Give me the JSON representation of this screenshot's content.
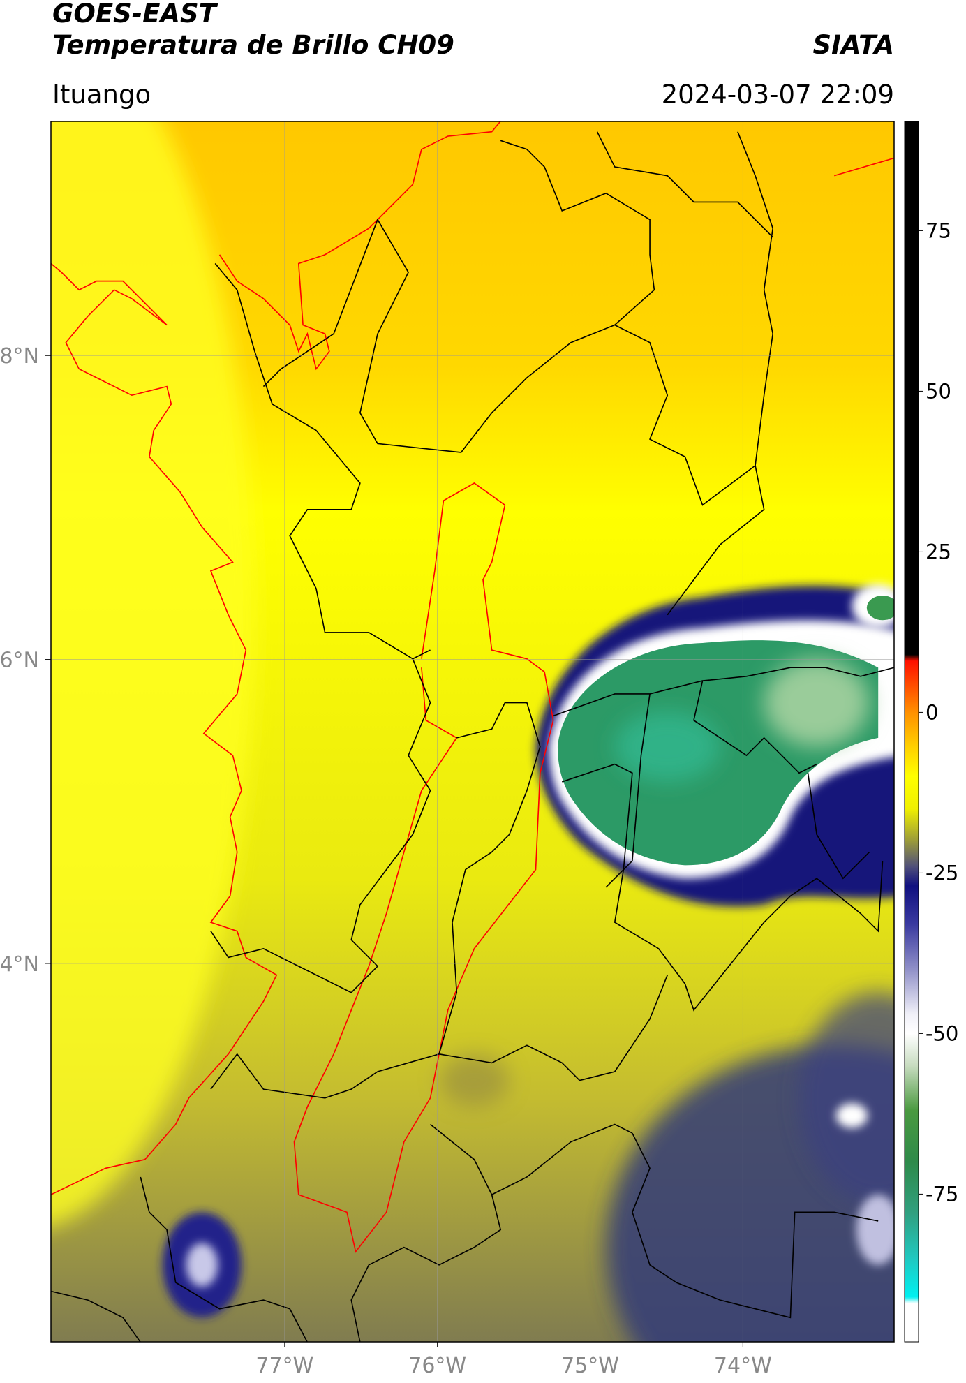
{
  "header": {
    "title": "GOES-EAST",
    "subtitle": "Temperatura de Brillo CH09",
    "source": "SIATA",
    "location": "Ituango",
    "datetime": "2024-03-07 22:09"
  },
  "map": {
    "xlim": [
      -78.53,
      -73.01
    ],
    "ylim": [
      1.51,
      9.54
    ],
    "xticks": [
      {
        "value": -77,
        "label": "77°W"
      },
      {
        "value": -76,
        "label": "76°W"
      },
      {
        "value": -75,
        "label": "75°W"
      },
      {
        "value": -74,
        "label": "74°W"
      }
    ],
    "yticks": [
      {
        "value": 4,
        "label": "4°N"
      },
      {
        "value": 6,
        "label": "6°N"
      },
      {
        "value": 8,
        "label": "8°N"
      }
    ],
    "grid": true
  },
  "colorbar": {
    "lim": [
      -98,
      92
    ],
    "ticks": [
      75,
      50,
      25,
      0,
      -25,
      -50,
      -75
    ],
    "stops": [
      {
        "value": 92,
        "color": "#000000"
      },
      {
        "value": 9,
        "color": "#000000"
      },
      {
        "value": 8,
        "color": "#ff1000"
      },
      {
        "value": 3,
        "color": "#ff6000"
      },
      {
        "value": 0,
        "color": "#ff9000"
      },
      {
        "value": -5,
        "color": "#ffcc00"
      },
      {
        "value": -10,
        "color": "#ffff00"
      },
      {
        "value": -15,
        "color": "#f0f000"
      },
      {
        "value": -20,
        "color": "#9a9a3a"
      },
      {
        "value": -24,
        "color": "#50507a"
      },
      {
        "value": -27,
        "color": "#101080"
      },
      {
        "value": -33,
        "color": "#3a3aa0"
      },
      {
        "value": -40,
        "color": "#9090c8"
      },
      {
        "value": -47,
        "color": "#f0f0f8"
      },
      {
        "value": -50,
        "color": "#ffffff"
      },
      {
        "value": -55,
        "color": "#c8dcc0"
      },
      {
        "value": -62,
        "color": "#4a9a40"
      },
      {
        "value": -70,
        "color": "#2e8a4a"
      },
      {
        "value": -78,
        "color": "#30a080"
      },
      {
        "value": -85,
        "color": "#20c8c0"
      },
      {
        "value": -91,
        "color": "#00f0f0"
      },
      {
        "value": -92,
        "color": "#ffffff"
      },
      {
        "value": -98,
        "color": "#ffffff"
      }
    ]
  }
}
